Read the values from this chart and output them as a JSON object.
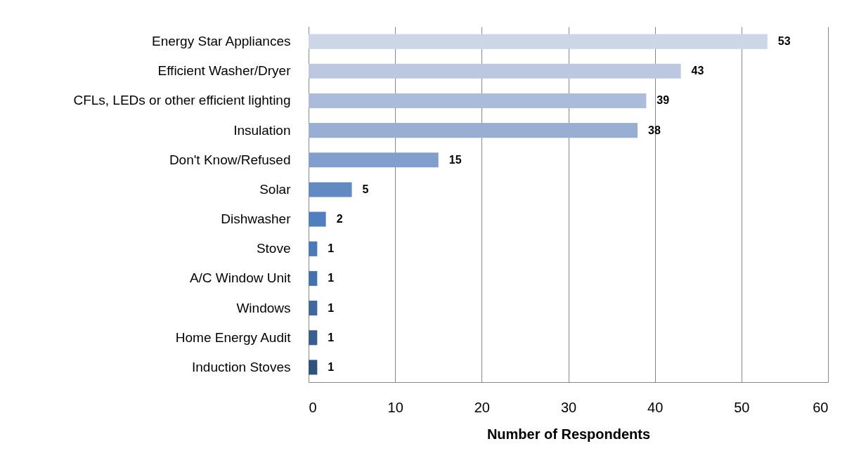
{
  "chart_data": {
    "type": "bar",
    "orientation": "horizontal",
    "xlabel": "Number of Respondents",
    "categories": [
      "Energy Star Appliances",
      "Efficient Washer/Dryer",
      "CFLs, LEDs or other efficient lighting",
      "Insulation",
      "Don't Know/Refused",
      "Solar",
      "Dishwasher",
      "Stove",
      "A/C Window Unit",
      "Windows",
      "Home Energy Audit",
      "Induction Stoves"
    ],
    "values": [
      53,
      43,
      39,
      38,
      15,
      5,
      2,
      1,
      1,
      1,
      1,
      1
    ],
    "colors": [
      "#cdd6e7",
      "#bcc8e0",
      "#abbbda",
      "#99aed3",
      "#819fcd",
      "#6389c3",
      "#4f7fbf",
      "#4a7ab8",
      "#4572ac",
      "#40689d",
      "#3a5e8f",
      "#30527f"
    ],
    "xlim": [
      0,
      60
    ],
    "xticks": [
      0,
      10,
      20,
      30,
      40,
      50,
      60
    ],
    "grid": "x",
    "data_labels": true
  }
}
